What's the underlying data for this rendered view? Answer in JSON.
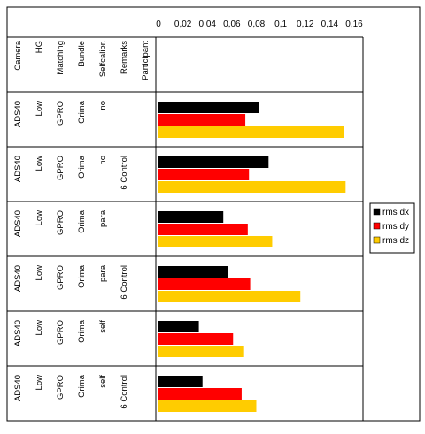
{
  "chart_data": {
    "type": "bar",
    "orientation": "horizontal",
    "x_ticks": [
      "0",
      "0,02",
      "0,04",
      "0,06",
      "0,08",
      "0,1",
      "0,12",
      "0,14",
      "0,16"
    ],
    "xlim": [
      0,
      0.16
    ],
    "grid": false,
    "legend_position": "right",
    "table_headers": [
      "Camera",
      "HG",
      "Matching",
      "Bundle",
      "Selfcalibr.",
      "Remarks",
      "Participant"
    ],
    "rows": [
      {
        "cells": [
          "ADS40",
          "Low",
          "GPRO",
          "Orima",
          "no",
          "",
          ""
        ]
      },
      {
        "cells": [
          "ADS40",
          "Low",
          "GPRO",
          "Orima",
          "no",
          "6 Control",
          ""
        ]
      },
      {
        "cells": [
          "ADS40",
          "Low",
          "GPRO",
          "Orima",
          "para",
          "",
          ""
        ]
      },
      {
        "cells": [
          "ADS40",
          "Low",
          "GPRO",
          "Orima",
          "para",
          "6 Control",
          ""
        ]
      },
      {
        "cells": [
          "ADS40",
          "Low",
          "GPRO",
          "Orima",
          "self",
          "",
          ""
        ]
      },
      {
        "cells": [
          "ADS40",
          "Low",
          "GPRO",
          "Orima",
          "self",
          "6 Control",
          ""
        ]
      }
    ],
    "series": [
      {
        "name": "rms dx",
        "color": "#000000",
        "values": [
          0.082,
          0.09,
          0.053,
          0.057,
          0.033,
          0.036
        ]
      },
      {
        "name": "rms dy",
        "color": "#ff0000",
        "values": [
          0.071,
          0.074,
          0.073,
          0.075,
          0.061,
          0.068
        ]
      },
      {
        "name": "rms dz",
        "color": "#ffcc00",
        "values": [
          0.152,
          0.153,
          0.093,
          0.116,
          0.07,
          0.08
        ]
      }
    ]
  }
}
